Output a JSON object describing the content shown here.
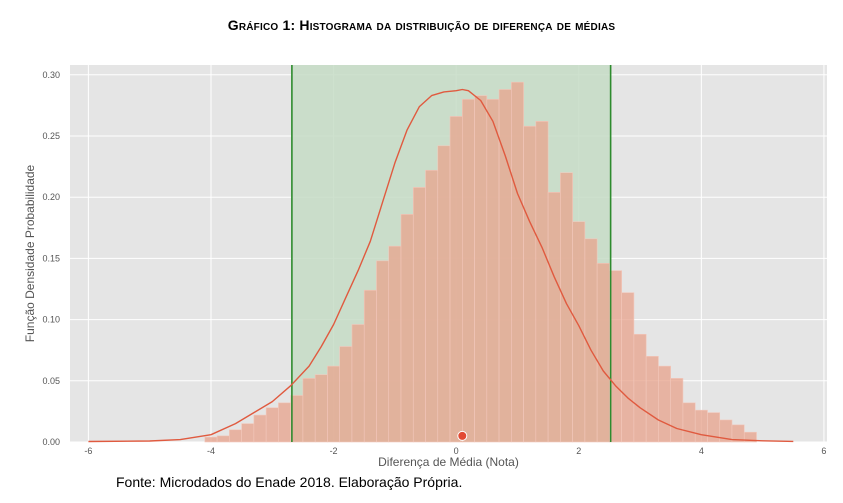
{
  "title": "Gráfico 1: Histograma da distribuição de diferença de médias",
  "source": "Fonte: Microdados do Enade 2018. Elaboração Própria.",
  "colors": {
    "plot_background": "#e5e5e5",
    "grid": "#ffffff",
    "bar_fill": "#e8a590",
    "bar_edge": "#f2c8bc",
    "kde_line": "#e05a3f",
    "ci_shade": "#c5dcc5",
    "ci_line": "#2e8b2e",
    "marker": "#e24a33"
  },
  "chart_data": {
    "type": "bar",
    "title": "Gráfico 1: Histograma da distribuição de diferença de médias",
    "xlabel": "Diferença de Média (Nota)",
    "ylabel": "Função Densidade Probabilidade",
    "xlim": [
      -6.3,
      6.05
    ],
    "ylim": [
      0,
      0.308
    ],
    "xticks": [
      -6,
      -4,
      -2,
      0,
      2,
      4,
      6
    ],
    "yticks": [
      0.0,
      0.05,
      0.1,
      0.15,
      0.2,
      0.25,
      0.3
    ],
    "ytick_labels": [
      "0.00",
      "0.05",
      "0.10",
      "0.15",
      "0.20",
      "0.25",
      "0.30"
    ],
    "grid": true,
    "bins": {
      "start": -4.1,
      "width": 0.2,
      "values": [
        0.004,
        0.005,
        0.01,
        0.015,
        0.022,
        0.028,
        0.032,
        0.038,
        0.052,
        0.055,
        0.062,
        0.078,
        0.096,
        0.124,
        0.148,
        0.16,
        0.186,
        0.208,
        0.222,
        0.242,
        0.266,
        0.28,
        0.283,
        0.28,
        0.288,
        0.294,
        0.258,
        0.262,
        0.204,
        0.22,
        0.18,
        0.166,
        0.146,
        0.14,
        0.122,
        0.088,
        0.07,
        0.062,
        0.052,
        0.032,
        0.026,
        0.024,
        0.018,
        0.014,
        0.008
      ]
    },
    "kde": {
      "x": [
        -6.0,
        -5.0,
        -4.5,
        -4.0,
        -3.6,
        -3.3,
        -3.0,
        -2.7,
        -2.4,
        -2.2,
        -2.0,
        -1.8,
        -1.6,
        -1.4,
        -1.2,
        -1.0,
        -0.8,
        -0.6,
        -0.4,
        -0.2,
        0.0,
        0.1,
        0.2,
        0.4,
        0.6,
        0.8,
        1.0,
        1.2,
        1.4,
        1.6,
        1.8,
        2.0,
        2.2,
        2.4,
        2.6,
        2.8,
        3.0,
        3.3,
        3.6,
        4.0,
        4.5,
        5.0,
        5.5
      ],
      "y": [
        0.0004,
        0.0008,
        0.002,
        0.006,
        0.015,
        0.024,
        0.033,
        0.046,
        0.062,
        0.078,
        0.096,
        0.118,
        0.14,
        0.164,
        0.196,
        0.228,
        0.255,
        0.274,
        0.283,
        0.286,
        0.287,
        0.288,
        0.287,
        0.279,
        0.262,
        0.234,
        0.203,
        0.18,
        0.159,
        0.135,
        0.113,
        0.095,
        0.075,
        0.058,
        0.046,
        0.036,
        0.028,
        0.018,
        0.011,
        0.006,
        0.002,
        0.001,
        0.0005
      ]
    },
    "confidence_interval": [
      -2.68,
      2.52
    ],
    "mean_marker": {
      "x": 0.1,
      "y": 0.005
    }
  }
}
